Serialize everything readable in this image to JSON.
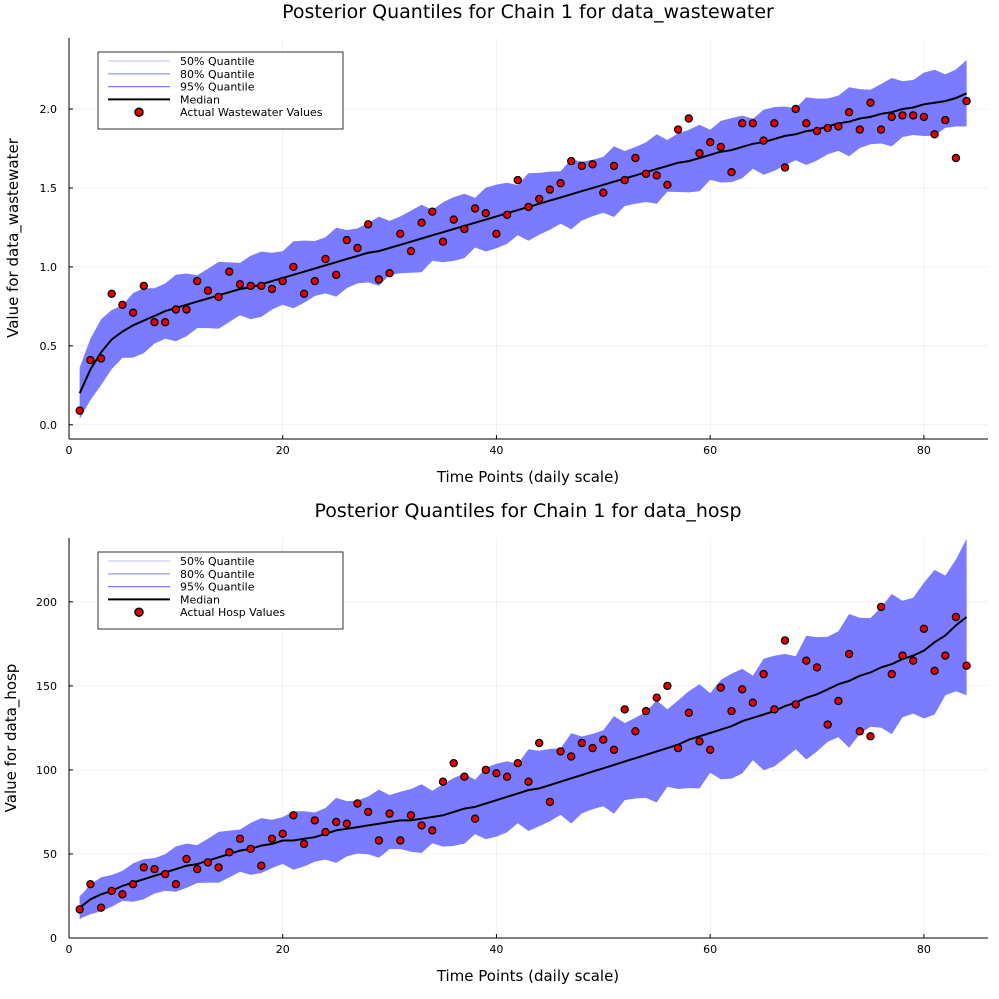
{
  "colors": {
    "q50": "#cbcbff",
    "q80": "#a3a3ff",
    "q95": "#7b7bff",
    "median": "#000000",
    "points": "#e00000"
  },
  "chart_data": [
    {
      "type": "line",
      "title": "Posterior Quantiles for Chain 1 for data_wastewater",
      "xlabel": "Time Points (daily scale)",
      "ylabel": "Value for data_wastewater",
      "xlim": [
        0,
        86
      ],
      "ylim": [
        -0.09,
        2.45
      ],
      "xticks": [
        0,
        20,
        40,
        60,
        80
      ],
      "yticks": [
        0.0,
        0.5,
        1.0,
        1.5,
        2.0
      ],
      "ytick_labels": [
        "0.0",
        "0.5",
        "1.0",
        "1.5",
        "2.0"
      ],
      "grid": true,
      "legend_position": "top-left",
      "legend": [
        "50% Quantile",
        "80% Quantile",
        "95% Quantile",
        "Median",
        "Actual Wastewater Values"
      ],
      "band_half_widths": {
        "q50": 0.048,
        "q80": 0.12,
        "q95": 0.19
      },
      "x": [
        1,
        2,
        3,
        4,
        5,
        6,
        7,
        8,
        9,
        10,
        11,
        12,
        13,
        14,
        15,
        16,
        17,
        18,
        19,
        20,
        21,
        22,
        23,
        24,
        25,
        26,
        27,
        28,
        29,
        30,
        31,
        32,
        33,
        34,
        35,
        36,
        37,
        38,
        39,
        40,
        41,
        42,
        43,
        44,
        45,
        46,
        47,
        48,
        49,
        50,
        51,
        52,
        53,
        54,
        55,
        56,
        57,
        58,
        59,
        60,
        61,
        62,
        63,
        64,
        65,
        66,
        67,
        68,
        69,
        70,
        71,
        72,
        73,
        74,
        75,
        76,
        77,
        78,
        79,
        80,
        81,
        82,
        83,
        84
      ],
      "median": [
        0.2,
        0.35,
        0.46,
        0.54,
        0.59,
        0.63,
        0.66,
        0.69,
        0.72,
        0.74,
        0.76,
        0.78,
        0.8,
        0.82,
        0.84,
        0.86,
        0.87,
        0.89,
        0.91,
        0.93,
        0.95,
        0.97,
        0.99,
        1.01,
        1.03,
        1.05,
        1.07,
        1.09,
        1.1,
        1.12,
        1.14,
        1.16,
        1.18,
        1.2,
        1.22,
        1.24,
        1.26,
        1.28,
        1.3,
        1.32,
        1.34,
        1.36,
        1.38,
        1.4,
        1.42,
        1.44,
        1.46,
        1.48,
        1.5,
        1.52,
        1.54,
        1.56,
        1.58,
        1.6,
        1.62,
        1.64,
        1.66,
        1.67,
        1.69,
        1.71,
        1.73,
        1.74,
        1.76,
        1.78,
        1.79,
        1.81,
        1.83,
        1.84,
        1.86,
        1.87,
        1.89,
        1.91,
        1.92,
        1.94,
        1.95,
        1.97,
        1.98,
        2.0,
        2.01,
        2.03,
        2.04,
        2.05,
        2.07,
        2.1
      ],
      "actual": [
        0.09,
        0.41,
        0.42,
        0.83,
        0.76,
        0.71,
        0.88,
        0.65,
        0.65,
        0.73,
        0.73,
        0.91,
        0.85,
        0.81,
        0.97,
        0.89,
        0.88,
        0.88,
        0.86,
        0.91,
        1.0,
        0.83,
        0.91,
        1.05,
        0.95,
        1.17,
        1.12,
        1.27,
        0.92,
        0.96,
        1.21,
        1.1,
        1.28,
        1.35,
        1.16,
        1.3,
        1.24,
        1.37,
        1.34,
        1.21,
        1.33,
        1.55,
        1.38,
        1.43,
        1.49,
        1.53,
        1.67,
        1.64,
        1.65,
        1.47,
        1.64,
        1.55,
        1.69,
        1.59,
        1.58,
        1.52,
        1.87,
        1.94,
        1.72,
        1.79,
        1.76,
        1.6,
        1.91,
        1.91,
        1.8,
        1.91,
        1.63,
        2.0,
        1.91,
        1.86,
        1.88,
        1.89,
        1.98,
        1.87,
        2.04,
        1.87,
        1.95,
        1.96,
        1.96,
        1.95,
        1.84,
        1.93,
        1.69,
        2.05
      ]
    },
    {
      "type": "line",
      "title": "Posterior Quantiles for Chain 1 for data_hosp",
      "xlabel": "Time Points (daily scale)",
      "ylabel": "Value for data_hosp",
      "xlim": [
        0,
        86
      ],
      "ylim": [
        0,
        238
      ],
      "xticks": [
        0,
        20,
        40,
        60,
        80
      ],
      "yticks": [
        0,
        50,
        100,
        150,
        200
      ],
      "ytick_labels": [
        "0",
        "50",
        "100",
        "150",
        "200"
      ],
      "grid": true,
      "legend_position": "top-left",
      "legend": [
        "50% Quantile",
        "80% Quantile",
        "95% Quantile",
        "Median",
        "Actual Hosp Values"
      ],
      "band_half_widths_relative": {
        "q50": 0.06,
        "q80": 0.13,
        "q95": 0.2
      },
      "x": [
        1,
        2,
        3,
        4,
        5,
        6,
        7,
        8,
        9,
        10,
        11,
        12,
        13,
        14,
        15,
        16,
        17,
        18,
        19,
        20,
        21,
        22,
        23,
        24,
        25,
        26,
        27,
        28,
        29,
        30,
        31,
        32,
        33,
        34,
        35,
        36,
        37,
        38,
        39,
        40,
        41,
        42,
        43,
        44,
        45,
        46,
        47,
        48,
        49,
        50,
        51,
        52,
        53,
        54,
        55,
        56,
        57,
        58,
        59,
        60,
        61,
        62,
        63,
        64,
        65,
        66,
        67,
        68,
        69,
        70,
        71,
        72,
        73,
        74,
        75,
        76,
        77,
        78,
        79,
        80,
        81,
        82,
        83,
        84
      ],
      "median": [
        18,
        23,
        26,
        28,
        31,
        33,
        35,
        37,
        39,
        41,
        43,
        44,
        46,
        48,
        50,
        52,
        53,
        55,
        56,
        58,
        58,
        59,
        60,
        62,
        64,
        65,
        66,
        67,
        68,
        69,
        70,
        70,
        71,
        72,
        73,
        75,
        77,
        78,
        80,
        82,
        84,
        86,
        88,
        89,
        91,
        93,
        95,
        97,
        99,
        101,
        103,
        105,
        107,
        109,
        111,
        113,
        115,
        118,
        120,
        122,
        124,
        126,
        129,
        131,
        133,
        135,
        138,
        140,
        143,
        145,
        148,
        151,
        153,
        156,
        158,
        161,
        163,
        166,
        168,
        171,
        176,
        180,
        186,
        191
      ],
      "actual": [
        17,
        32,
        18,
        28,
        26,
        32,
        42,
        41,
        38,
        32,
        47,
        41,
        45,
        42,
        51,
        59,
        53,
        43,
        59,
        62,
        73,
        56,
        70,
        63,
        69,
        68,
        80,
        75,
        58,
        74,
        58,
        73,
        67,
        64,
        93,
        104,
        96,
        71,
        100,
        98,
        96,
        104,
        93,
        116,
        81,
        111,
        108,
        116,
        113,
        118,
        112,
        136,
        123,
        135,
        143,
        150,
        113,
        134,
        117,
        112,
        149,
        135,
        148,
        140,
        157,
        136,
        177,
        139,
        165,
        161,
        127,
        141,
        169,
        123,
        120,
        197,
        157,
        168,
        165,
        184,
        159,
        168,
        191,
        162
      ]
    }
  ]
}
